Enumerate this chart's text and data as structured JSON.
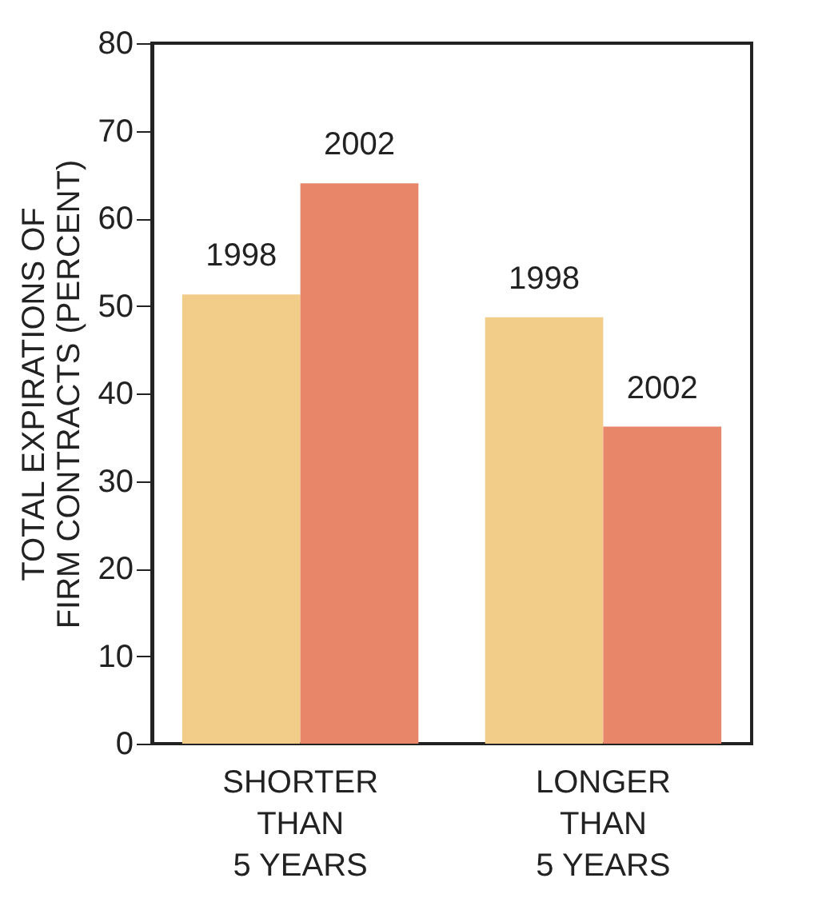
{
  "chart_data": {
    "type": "bar",
    "categories": [
      "SHORTER\nTHAN\n5 YEARS",
      "LONGER\nTHAN\n5 YEARS"
    ],
    "ylabel": "TOTAL EXPIRATIONS OF\nFIRM CONTRACTS (PERCENT)",
    "series": [
      {
        "name": "1998",
        "color": "#f2cd8a",
        "values": [
          51.3,
          48.7
        ]
      },
      {
        "name": "2002",
        "color": "#e8866a",
        "values": [
          64.0,
          36.2
        ]
      }
    ],
    "ylim": [
      0,
      80
    ],
    "yticks": [
      0,
      10,
      20,
      30,
      40,
      50,
      60,
      70,
      80
    ],
    "grid": false,
    "legend": false
  }
}
